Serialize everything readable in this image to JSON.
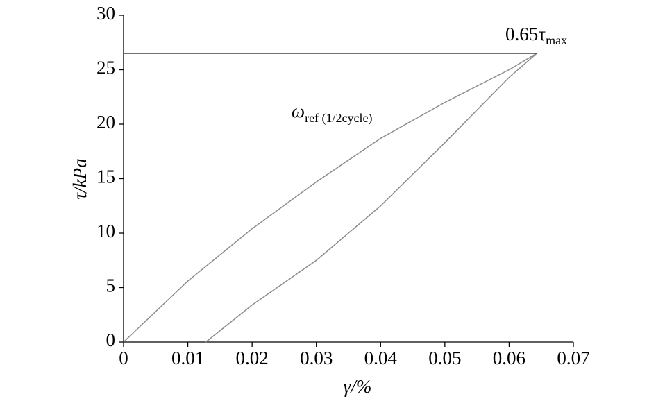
{
  "chart_data": {
    "type": "line",
    "xlabel": "γ/%",
    "ylabel": "τ/kPa",
    "annotations": [
      {
        "text": "0.65τ",
        "sub": "max"
      },
      {
        "text": "ω",
        "sub": "ref (1/2cycle)"
      }
    ],
    "series": [
      {
        "color": "#8c8c8c",
        "x": [
          0,
          0.01,
          0.02,
          0.03,
          0.04,
          0.05,
          0.06,
          0.0643
        ],
        "values": [
          0,
          5.6,
          10.4,
          14.7,
          18.7,
          22.0,
          25.0,
          26.5
        ]
      },
      {
        "color": "#8c8c8c",
        "x": [
          0.0128,
          0.02,
          0.03,
          0.04,
          0.05,
          0.06,
          0.0643
        ],
        "values": [
          0,
          3.4,
          7.5,
          12.5,
          18.3,
          24.3,
          26.5
        ]
      },
      {
        "color": "#444444",
        "x": [
          0,
          0.0643
        ],
        "values": [
          26.5,
          26.5
        ]
      }
    ],
    "xlim": [
      0,
      0.07
    ],
    "xticks": [
      0,
      0.01,
      0.02,
      0.03,
      0.04,
      0.05,
      0.06,
      0.07
    ],
    "ylim": [
      0,
      30
    ],
    "yticks": [
      0,
      5,
      10,
      15,
      20,
      25,
      30
    ]
  }
}
